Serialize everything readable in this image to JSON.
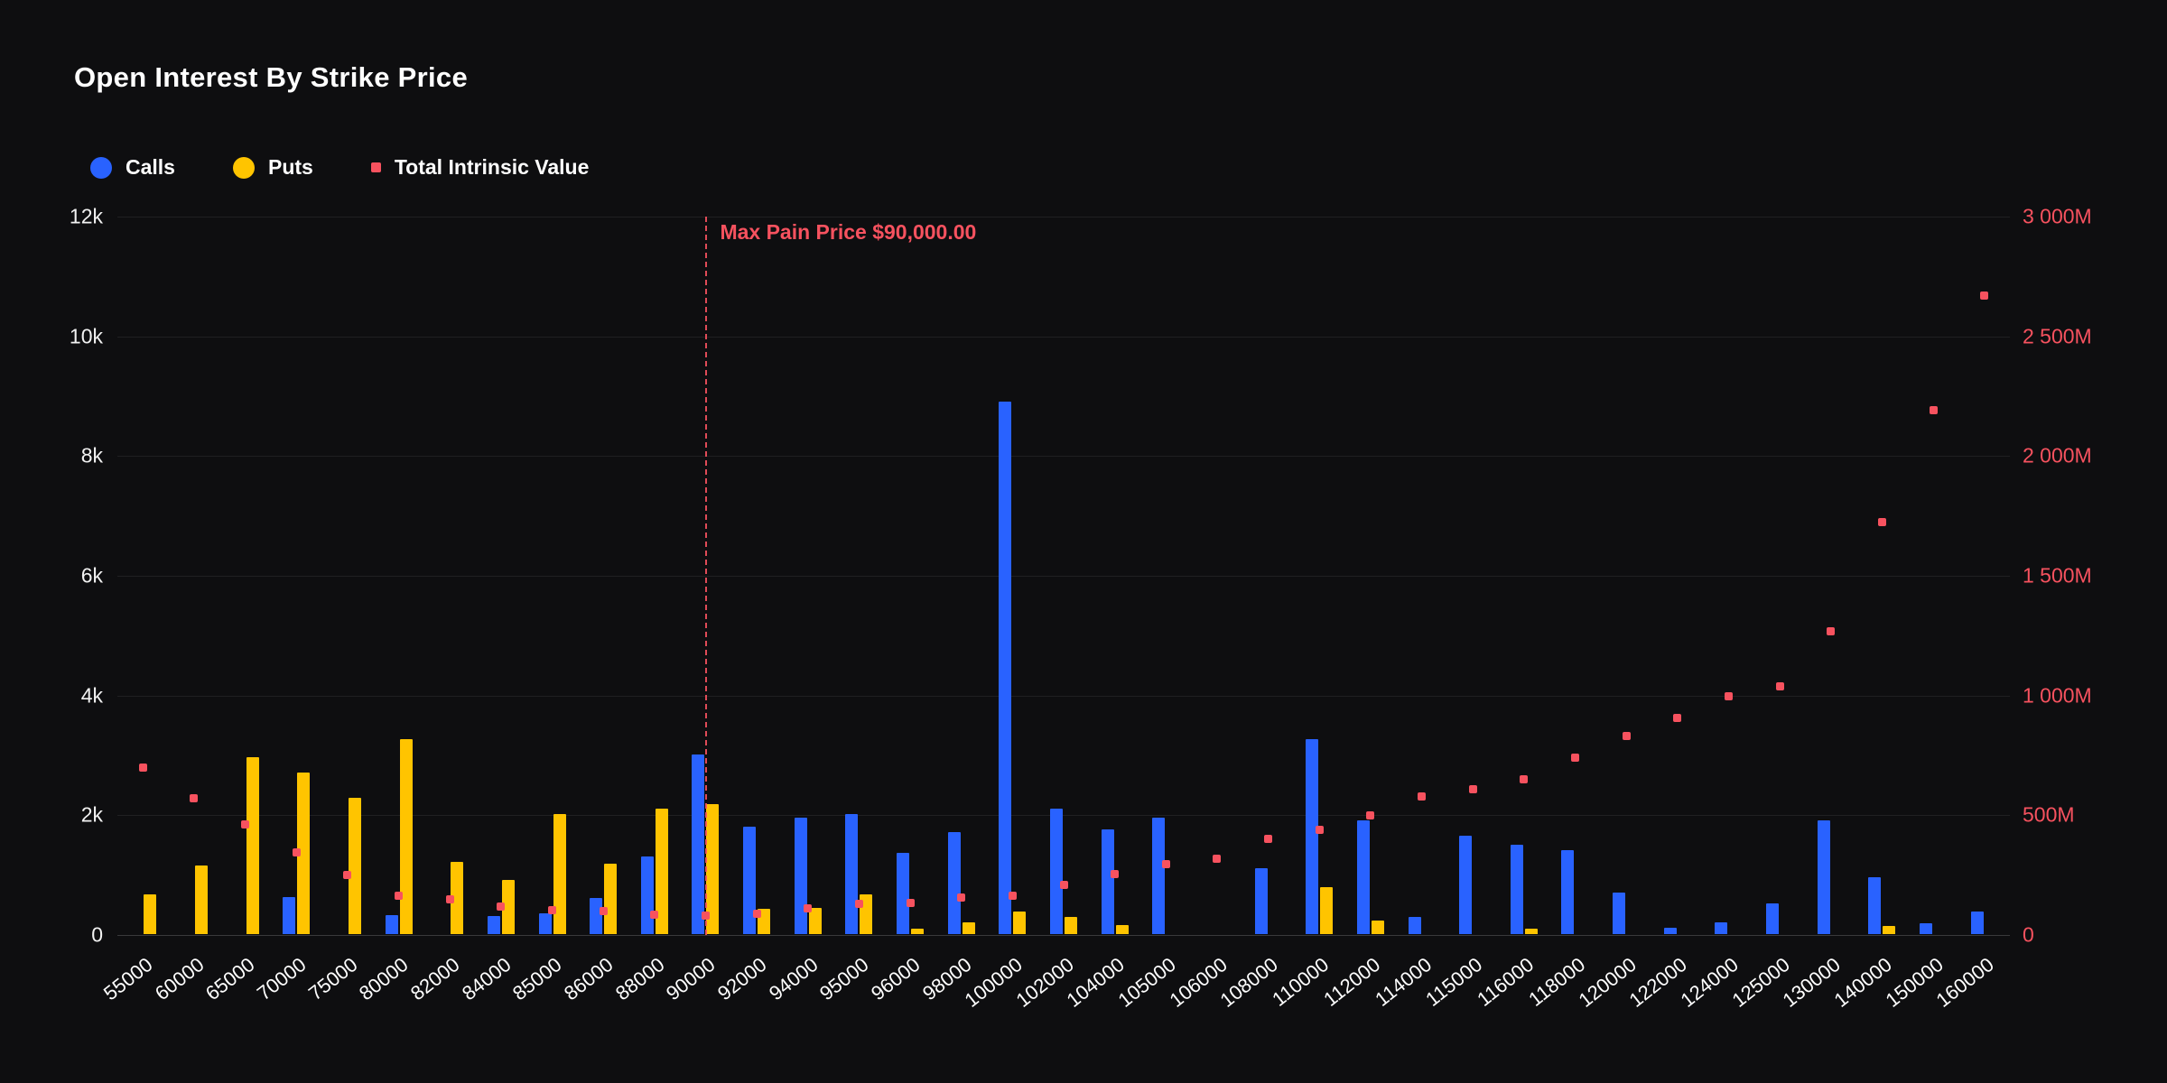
{
  "title": "Open Interest By Strike Price",
  "legend": [
    {
      "label": "Calls",
      "color": "#2962ff",
      "shape": "circle"
    },
    {
      "label": "Puts",
      "color": "#ffc400",
      "shape": "circle"
    },
    {
      "label": "Total Intrinsic Value",
      "color": "#f7525f",
      "shape": "square"
    }
  ],
  "max_pain": {
    "label": "Max Pain Price $90,000.00",
    "category": "90000"
  },
  "colors": {
    "background": "#0e0e10",
    "text": "#ffffff",
    "calls": "#2962ff",
    "puts": "#ffc400",
    "intrinsic": "#f7525f",
    "grid": "rgba(255,255,255,0.08)"
  },
  "chart_data": {
    "type": "bar",
    "title": "Open Interest By Strike Price",
    "categories": [
      "55000",
      "60000",
      "65000",
      "70000",
      "75000",
      "80000",
      "82000",
      "84000",
      "85000",
      "86000",
      "88000",
      "90000",
      "92000",
      "94000",
      "95000",
      "96000",
      "98000",
      "100000",
      "102000",
      "104000",
      "105000",
      "106000",
      "108000",
      "110000",
      "112000",
      "114000",
      "115000",
      "116000",
      "118000",
      "120000",
      "122000",
      "124000",
      "125000",
      "130000",
      "140000",
      "150000",
      "160000"
    ],
    "series": [
      {
        "name": "Calls",
        "type": "bar",
        "axis": "left",
        "color": "#2962ff",
        "values": [
          0,
          0,
          0,
          620,
          0,
          320,
          0,
          300,
          350,
          600,
          1300,
          3000,
          1800,
          1950,
          2000,
          1350,
          1700,
          8900,
          2100,
          1750,
          1950,
          0,
          1100,
          3250,
          1900,
          280,
          1650,
          1500,
          1400,
          700,
          100,
          200,
          520,
          1900,
          950,
          180,
          380
        ]
      },
      {
        "name": "Puts",
        "type": "bar",
        "axis": "left",
        "color": "#ffc400",
        "values": [
          670,
          1150,
          2950,
          2700,
          2280,
          3250,
          1200,
          900,
          2000,
          1180,
          2100,
          2170,
          420,
          440,
          660,
          90,
          200,
          370,
          280,
          150,
          0,
          0,
          0,
          780,
          230,
          0,
          0,
          90,
          0,
          0,
          0,
          0,
          0,
          0,
          140,
          0,
          0
        ]
      },
      {
        "name": "Total Intrinsic Value",
        "type": "scatter",
        "axis": "right",
        "color": "#f7525f",
        "values": [
          700,
          570,
          460,
          345,
          250,
          165,
          150,
          120,
          105,
          100,
          85,
          80,
          90,
          110,
          130,
          135,
          155,
          165,
          210,
          255,
          295,
          320,
          400,
          440,
          500,
          580,
          610,
          650,
          740,
          830,
          905,
          995,
          1040,
          1270,
          1725,
          2190,
          2670
        ]
      }
    ],
    "left_axis": {
      "min": 0,
      "max": 12000,
      "tick_values": [
        0,
        2000,
        4000,
        6000,
        8000,
        10000,
        12000
      ],
      "tick_labels": [
        "0",
        "2k",
        "4k",
        "6k",
        "8k",
        "10k",
        "12k"
      ]
    },
    "right_axis": {
      "min": 0,
      "max": 3000,
      "unit": "M",
      "tick_values": [
        0,
        500,
        1000,
        1500,
        2000,
        2500,
        3000
      ],
      "tick_labels": [
        "0",
        "500M",
        "1 000M",
        "1 500M",
        "2 000M",
        "2 500M",
        "3 000M"
      ]
    },
    "grid": true,
    "legend_position": "top-left",
    "annotation": {
      "text": "Max Pain Price $90,000.00",
      "x": "90000"
    }
  }
}
